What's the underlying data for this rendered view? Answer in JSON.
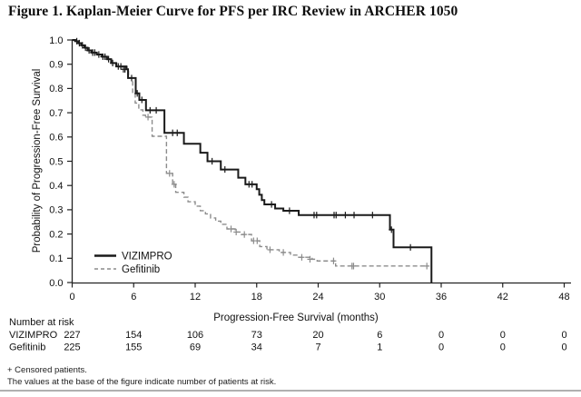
{
  "figure_title": "Figure 1. Kaplan-Meier Curve for PFS per IRC Review in ARCHER 1050",
  "footnotes": {
    "censored": "+ Censored patients.",
    "values_note": "The values at the base of the figure indicate number of patients at risk."
  },
  "colors": {
    "vizimpro": "#1a1a1a",
    "gefitinib": "#8c8c8c",
    "axis": "#222222",
    "bottom_rule": "#b0b0b0"
  },
  "chart_data": {
    "type": "line",
    "chart_style": "kaplan-meier-step",
    "title": "",
    "xlabel": "Progression-Free Survival (months)",
    "ylabel": "Probability of Progression-Free Survival",
    "xlim": [
      0,
      48
    ],
    "ylim": [
      0.0,
      1.0
    ],
    "xticks": [
      0,
      6,
      12,
      18,
      24,
      30,
      36,
      42,
      48
    ],
    "yticks": [
      0.0,
      0.1,
      0.2,
      0.3,
      0.4,
      0.5,
      0.6,
      0.7,
      0.8,
      0.9,
      1.0
    ],
    "grid": false,
    "legend_position": "lower-left-inside",
    "series": [
      {
        "name": "VIZIMPRO",
        "color": "#1a1a1a",
        "line_style": "solid",
        "end_month": null,
        "steps": [
          [
            0,
            1.0
          ],
          [
            0.3,
            0.995
          ],
          [
            0.6,
            0.987
          ],
          [
            0.9,
            0.978
          ],
          [
            1.2,
            0.968
          ],
          [
            1.5,
            0.957
          ],
          [
            1.9,
            0.948
          ],
          [
            2.4,
            0.94
          ],
          [
            2.9,
            0.931
          ],
          [
            3.4,
            0.921
          ],
          [
            3.8,
            0.905
          ],
          [
            4.3,
            0.891
          ],
          [
            5.3,
            0.879
          ],
          [
            5.45,
            0.843
          ],
          [
            6.2,
            0.78
          ],
          [
            6.55,
            0.753
          ],
          [
            7.2,
            0.71
          ],
          [
            9.0,
            0.617
          ],
          [
            10.9,
            0.572
          ],
          [
            12.5,
            0.535
          ],
          [
            13.2,
            0.5
          ],
          [
            14.5,
            0.466
          ],
          [
            16.2,
            0.432
          ],
          [
            16.9,
            0.405
          ],
          [
            18.0,
            0.385
          ],
          [
            18.25,
            0.362
          ],
          [
            18.5,
            0.34
          ],
          [
            18.75,
            0.322
          ],
          [
            19.8,
            0.305
          ],
          [
            20.6,
            0.296
          ],
          [
            22.1,
            0.278
          ],
          [
            31.0,
            0.218
          ],
          [
            31.35,
            0.145
          ],
          [
            35.05,
            0.0
          ]
        ],
        "censor_marks": [
          [
            0.45,
            0.995
          ],
          [
            0.7,
            0.987
          ],
          [
            1.0,
            0.978
          ],
          [
            1.3,
            0.968
          ],
          [
            1.65,
            0.957
          ],
          [
            2.0,
            0.948
          ],
          [
            2.2,
            0.948
          ],
          [
            2.6,
            0.94
          ],
          [
            3.0,
            0.931
          ],
          [
            3.2,
            0.931
          ],
          [
            3.55,
            0.921
          ],
          [
            3.95,
            0.905
          ],
          [
            4.5,
            0.891
          ],
          [
            4.75,
            0.891
          ],
          [
            5.0,
            0.879
          ],
          [
            5.15,
            0.879
          ],
          [
            5.8,
            0.843
          ],
          [
            6.35,
            0.78
          ],
          [
            6.8,
            0.753
          ],
          [
            7.6,
            0.71
          ],
          [
            8.2,
            0.71
          ],
          [
            9.8,
            0.617
          ],
          [
            10.25,
            0.617
          ],
          [
            13.65,
            0.5
          ],
          [
            14.9,
            0.466
          ],
          [
            17.25,
            0.405
          ],
          [
            17.55,
            0.405
          ],
          [
            19.45,
            0.322
          ],
          [
            21.2,
            0.296
          ],
          [
            23.6,
            0.278
          ],
          [
            23.85,
            0.278
          ],
          [
            25.55,
            0.278
          ],
          [
            25.75,
            0.278
          ],
          [
            26.65,
            0.278
          ],
          [
            27.5,
            0.278
          ],
          [
            29.3,
            0.278
          ],
          [
            31.15,
            0.218
          ],
          [
            33.0,
            0.145
          ]
        ]
      },
      {
        "name": "Gefitinib",
        "color": "#8c8c8c",
        "line_style": "dashed",
        "end_month": 34.7,
        "steps": [
          [
            0,
            1.0
          ],
          [
            0.35,
            0.993
          ],
          [
            0.65,
            0.985
          ],
          [
            0.95,
            0.976
          ],
          [
            1.25,
            0.966
          ],
          [
            1.55,
            0.955
          ],
          [
            1.95,
            0.946
          ],
          [
            2.45,
            0.938
          ],
          [
            2.95,
            0.929
          ],
          [
            3.45,
            0.919
          ],
          [
            3.85,
            0.903
          ],
          [
            4.35,
            0.889
          ],
          [
            5.35,
            0.877
          ],
          [
            5.5,
            0.843
          ],
          [
            5.9,
            0.78
          ],
          [
            6.15,
            0.74
          ],
          [
            6.5,
            0.712
          ],
          [
            6.9,
            0.69
          ],
          [
            7.15,
            0.682
          ],
          [
            7.8,
            0.603
          ],
          [
            9.2,
            0.45
          ],
          [
            9.8,
            0.405
          ],
          [
            10.1,
            0.372
          ],
          [
            10.9,
            0.352
          ],
          [
            11.3,
            0.333
          ],
          [
            12.0,
            0.315
          ],
          [
            12.5,
            0.296
          ],
          [
            13.0,
            0.283
          ],
          [
            13.5,
            0.266
          ],
          [
            14.0,
            0.253
          ],
          [
            14.5,
            0.24
          ],
          [
            15.1,
            0.221
          ],
          [
            15.9,
            0.208
          ],
          [
            16.5,
            0.198
          ],
          [
            17.5,
            0.172
          ],
          [
            18.3,
            0.148
          ],
          [
            19.0,
            0.135
          ],
          [
            20.2,
            0.124
          ],
          [
            21.3,
            0.113
          ],
          [
            22.0,
            0.104
          ],
          [
            23.4,
            0.096
          ],
          [
            23.9,
            0.089
          ],
          [
            25.7,
            0.068
          ]
        ],
        "censor_marks": [
          [
            7.4,
            0.682
          ],
          [
            9.5,
            0.45
          ],
          [
            9.95,
            0.405
          ],
          [
            15.5,
            0.221
          ],
          [
            16.0,
            0.208
          ],
          [
            16.8,
            0.198
          ],
          [
            17.7,
            0.172
          ],
          [
            18.05,
            0.172
          ],
          [
            19.3,
            0.135
          ],
          [
            20.6,
            0.124
          ],
          [
            22.4,
            0.104
          ],
          [
            23.2,
            0.096
          ],
          [
            25.5,
            0.089
          ],
          [
            27.3,
            0.068
          ],
          [
            27.45,
            0.068
          ],
          [
            34.6,
            0.068
          ]
        ]
      }
    ],
    "number_at_risk": {
      "label": "Number at risk",
      "months": [
        0,
        6,
        12,
        18,
        24,
        30,
        36,
        42,
        48
      ],
      "rows": [
        {
          "name": "VIZIMPRO",
          "counts": [
            227,
            154,
            106,
            73,
            20,
            6,
            0,
            0,
            0
          ]
        },
        {
          "name": "Gefitinib",
          "counts": [
            225,
            155,
            69,
            34,
            7,
            1,
            0,
            0,
            0
          ]
        }
      ]
    }
  }
}
